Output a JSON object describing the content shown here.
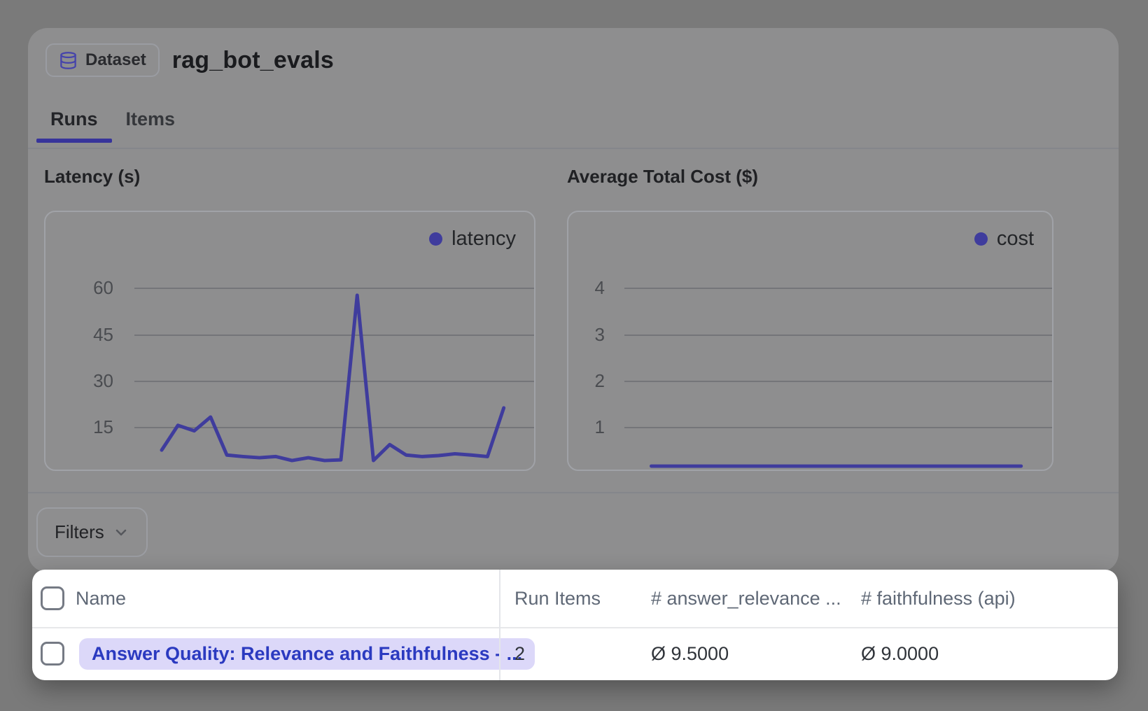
{
  "header": {
    "badge_label": "Dataset",
    "title": "rag_bot_evals"
  },
  "tabs": [
    {
      "label": "Runs",
      "active": true
    },
    {
      "label": "Items",
      "active": false
    }
  ],
  "chart_data": [
    {
      "type": "line",
      "title": "Latency (s)",
      "series": [
        {
          "name": "latency",
          "values": [
            6.7,
            14.8,
            13.0,
            17.5,
            5.1,
            4.6,
            4.2,
            4.6,
            3.3,
            4.2,
            3.3,
            3.5,
            57.3,
            3.3,
            8.5,
            5.1,
            4.6,
            4.9,
            5.5,
            5.1,
            4.6,
            20.5
          ]
        }
      ],
      "yticks": [
        15,
        30,
        45,
        60
      ],
      "ylim": [
        0,
        75
      ],
      "grid": true,
      "legend_position": "top-right",
      "line_color": "#3f3c9d"
    },
    {
      "type": "line",
      "title": "Average Total Cost ($)",
      "series": [
        {
          "name": "cost",
          "values": [
            0.02,
            0.02,
            0.02,
            0.02,
            0.02,
            0.02,
            0.02,
            0.02,
            0.02,
            0.02,
            0.02,
            0.02,
            0.02,
            0.02,
            0.02,
            0.02,
            0.02,
            0.02,
            0.02,
            0.02
          ]
        }
      ],
      "yticks": [
        1,
        2,
        3,
        4
      ],
      "ylim": [
        0,
        5
      ],
      "grid": true,
      "legend_position": "top-right",
      "line_color": "#3f3c9d"
    }
  ],
  "filters": {
    "label": "Filters"
  },
  "table": {
    "columns": [
      "Name",
      "Run Items",
      "# answer_relevance ...",
      "# faithfulness (api)"
    ],
    "rows": [
      {
        "name": "Answer Quality: Relevance and Faithfulness - ...",
        "run_items": "2",
        "answer_relevance": "Ø 9.5000",
        "faithfulness": "Ø 9.0000"
      }
    ]
  },
  "colors": {
    "accent_indigo": "#3f3c9d",
    "icon_indigo": "#4543ab",
    "link_blue": "#2b3ac0",
    "pill_lavender": "#dcd8f9",
    "overlay_page_gray": "#7a7a7a",
    "overlay_card_gray": "#8e8e8f",
    "table_white": "#ffffff"
  }
}
